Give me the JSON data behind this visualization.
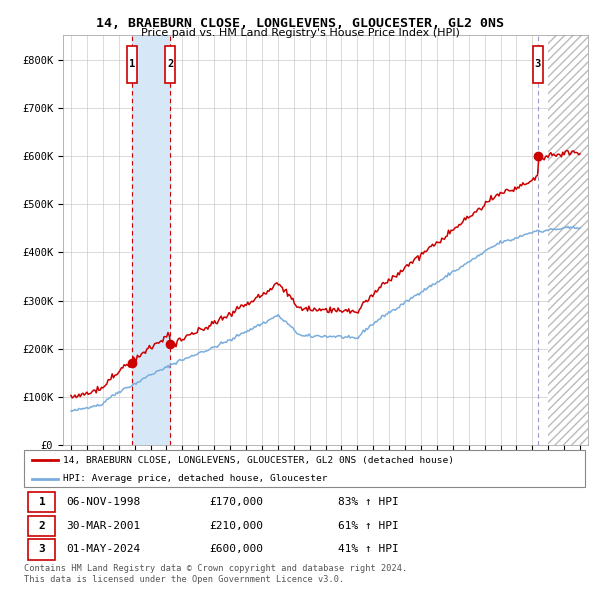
{
  "title": "14, BRAEBURN CLOSE, LONGLEVENS, GLOUCESTER, GL2 0NS",
  "subtitle": "Price paid vs. HM Land Registry's House Price Index (HPI)",
  "legend_line1": "14, BRAEBURN CLOSE, LONGLEVENS, GLOUCESTER, GL2 0NS (detached house)",
  "legend_line2": "HPI: Average price, detached house, Gloucester",
  "sale1_date": "06-NOV-1998",
  "sale1_price": 170000,
  "sale1_hpi": "83% ↑ HPI",
  "sale2_date": "30-MAR-2001",
  "sale2_price": 210000,
  "sale2_hpi": "61% ↑ HPI",
  "sale3_date": "01-MAY-2024",
  "sale3_price": 600000,
  "sale3_hpi": "41% ↑ HPI",
  "footer1": "Contains HM Land Registry data © Crown copyright and database right 2024.",
  "footer2": "This data is licensed under the Open Government Licence v3.0.",
  "hpi_color": "#7aadde",
  "price_color": "#cc0000",
  "marker_color": "#cc0000",
  "bg_color": "#ffffff",
  "grid_color": "#cccccc",
  "vspan_color": "#d6e8f7",
  "ylim": [
    0,
    850000
  ],
  "xlim_start": 1994.5,
  "xlim_end": 2027.5,
  "sale1_year": 1998.833,
  "sale2_year": 2001.25,
  "sale3_year": 2024.333
}
